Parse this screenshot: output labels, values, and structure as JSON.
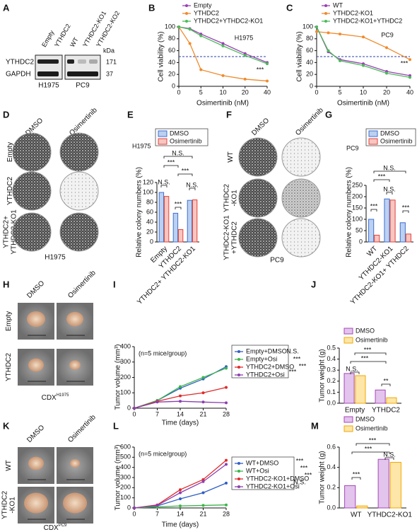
{
  "figure": {
    "panel_labels": [
      "A",
      "B",
      "C",
      "D",
      "E",
      "F",
      "G",
      "H",
      "I",
      "J",
      "K",
      "L",
      "M"
    ],
    "blot": {
      "lanes": [
        "Empty",
        "YTHDC2",
        "WT",
        "YTHDC2-KO1",
        "YTHDC2-KO2"
      ],
      "kda": "kDa",
      "proteins": [
        "YTHDC2",
        "GAPDH"
      ],
      "sizes": [
        "171",
        "37"
      ],
      "cells": [
        "H1975",
        "PC9"
      ]
    },
    "D": {
      "columns": [
        "DMSO",
        "Osimertinib"
      ],
      "rows": [
        [
          "Empty"
        ],
        [
          "YTHDC2"
        ],
        [
          "YTHDC2+",
          "YTHDC2-KO1"
        ]
      ],
      "cell": "H1975"
    },
    "F": {
      "columns": [
        "DMSO",
        "Osimertinib"
      ],
      "rows": [
        [
          "WT"
        ],
        [
          "YTHDC2",
          "-KO1"
        ],
        [
          "YTHDC2-KO1",
          "+YTHDC2"
        ]
      ],
      "cell": "PC9"
    },
    "H": {
      "columns": [
        "DMSO",
        "Osimertinib"
      ],
      "rows": [
        [
          "Empty"
        ],
        [
          "YTHDC2"
        ]
      ],
      "model": "CDX",
      "cell": "H1975"
    },
    "K": {
      "columns": [
        "DMSO",
        "Osimertinib"
      ],
      "rows": [
        [
          "WT"
        ],
        [
          "YTHDC2",
          "-KO1"
        ]
      ],
      "model": "CDX",
      "cell": "PC9"
    }
  },
  "chart_data": [
    {
      "type": "line",
      "categories": [
        "0",
        null,
        "5",
        "10",
        "20",
        "40"
      ],
      "x_label": "Osimertinib (nM)",
      "y_label": "Cell viability (%)",
      "ylim": [
        0,
        100
      ],
      "yticks": [
        0,
        20,
        40,
        60,
        80,
        100
      ],
      "hline": 50,
      "hline_color": "#2b3fa8",
      "series": [
        {
          "name": "Empty",
          "color": "#9b3fb5",
          "values": [
            100,
            97,
            88,
            72,
            55,
            40
          ]
        },
        {
          "name": "YTHDC2",
          "color": "#f08a2b",
          "values": [
            100,
            72,
            28,
            18,
            12,
            9
          ]
        },
        {
          "name": "YTHDC2+YTHDC2-KO1",
          "color": "#4cbb5a",
          "values": [
            100,
            96,
            85,
            68,
            52,
            38
          ]
        }
      ],
      "annotations": [
        "H1975",
        "***"
      ]
    },
    {
      "type": "line",
      "categories": [
        "0",
        null,
        "5",
        "10",
        "20",
        "40"
      ],
      "x_label": "Osimertinib (nM)",
      "y_label": "Cell viability (%)",
      "ylim": [
        0,
        100
      ],
      "yticks": [
        0,
        20,
        40,
        60,
        80,
        100
      ],
      "hline": 50,
      "hline_color": "#2b3fa8",
      "series": [
        {
          "name": "WT",
          "color": "#9b3fb5",
          "values": [
            100,
            58,
            45,
            38,
            25,
            18
          ]
        },
        {
          "name": "YTHDC2-KO1",
          "color": "#f08a2b",
          "values": [
            92,
            90,
            88,
            83,
            65,
            45
          ]
        },
        {
          "name": "YTHDC2-KO1+YTHDC2",
          "color": "#4cbb5a",
          "values": [
            100,
            60,
            43,
            35,
            22,
            15
          ]
        }
      ],
      "annotations": [
        "PC9",
        "***"
      ]
    },
    {
      "type": "bar",
      "categories": [
        "Empty",
        "YTHDC2",
        "YTHDC2+ YTHDC2-KO1"
      ],
      "y_label": "Relative colony numbers (%)",
      "ylim": [
        0,
        120
      ],
      "yticks": [
        0,
        20,
        40,
        60,
        80,
        100,
        120
      ],
      "series": [
        {
          "name": "DMSO",
          "color": "#3b6fd1",
          "fill": "#bcd0f0",
          "values": [
            100,
            58,
            84
          ]
        },
        {
          "name": "Osimertinib",
          "color": "#e2413b",
          "fill": "#f7c6c0",
          "values": [
            92,
            25,
            85
          ]
        }
      ],
      "annotations": [
        "H1975",
        "N.S.",
        "***",
        "***",
        "N.S.",
        "***",
        "N.S."
      ]
    },
    {
      "type": "bar",
      "categories": [
        "WT",
        "YTHDC2-KO1",
        "YTHDC2-KO1+ YTHDC2"
      ],
      "y_label": "Relative colony numbers (%)",
      "ylim": [
        0,
        250
      ],
      "yticks": [
        0,
        50,
        100,
        150,
        200,
        250
      ],
      "series": [
        {
          "name": "DMSO",
          "color": "#3b6fd1",
          "fill": "#bcd0f0",
          "values": [
            100,
            190,
            85
          ]
        },
        {
          "name": "Osimertinib",
          "color": "#e2413b",
          "fill": "#f7c6c0",
          "values": [
            30,
            185,
            35
          ]
        }
      ],
      "annotations": [
        "PC9",
        "N.S.",
        "***",
        "N.S.",
        "***",
        "***"
      ]
    },
    {
      "type": "line",
      "x": [
        0,
        7,
        14,
        21,
        28
      ],
      "xlim": [
        0,
        28
      ],
      "xticks": [
        0,
        7,
        14,
        21,
        28
      ],
      "x_label": "Time (days)",
      "y_label": "Tumor volume (mm³)",
      "ylim": [
        0,
        400
      ],
      "yticks": [
        0,
        100,
        200,
        300,
        400
      ],
      "series": [
        {
          "name": "Empty+DMSO",
          "color": "#2f5fc6",
          "values": [
            0,
            50,
            130,
            190,
            270
          ]
        },
        {
          "name": "Empty+Osi",
          "color": "#3cb54a",
          "values": [
            0,
            50,
            140,
            200,
            260
          ]
        },
        {
          "name": "YTHDC2+DMSO",
          "color": "#e02a2a",
          "values": [
            0,
            45,
            80,
            100,
            135
          ]
        },
        {
          "name": "YTHDC2+Osi",
          "color": "#8b3fb0",
          "values": [
            0,
            40,
            45,
            40,
            35
          ]
        }
      ],
      "annotations": [
        "(n=5 mice/group)",
        "N.S.",
        "***",
        "***",
        "***"
      ]
    },
    {
      "type": "bar",
      "categories": [
        "Empty",
        "YTHDC2"
      ],
      "y_label": "Tumor weight (g)",
      "ylim": [
        0,
        0.5
      ],
      "yticks": [
        {
          "value": 0,
          "label": "0.0"
        },
        0.1,
        0.2,
        0.3,
        0.4,
        0.5
      ],
      "series": [
        {
          "name": "DMSO",
          "color": "#a448b8",
          "fill": "#e3c4ec",
          "values": [
            0.27,
            0.12
          ]
        },
        {
          "name": "Osimertinib",
          "color": "#f2a800",
          "fill": "#fde6a8",
          "values": [
            0.25,
            0.05
          ]
        }
      ],
      "annotations": [
        "***",
        "***",
        "N.S.",
        "**"
      ]
    },
    {
      "type": "line",
      "x": [
        0,
        7,
        14,
        21,
        28
      ],
      "xlim": [
        0,
        28
      ],
      "xticks": [
        0,
        7,
        14,
        21,
        28
      ],
      "x_label": "Time (days)",
      "y_label": "Tumor volume (mm³)",
      "ylim": [
        0,
        600
      ],
      "yticks": [
        0,
        100,
        200,
        300,
        400,
        500,
        600
      ],
      "series": [
        {
          "name": "WT+DMSO",
          "color": "#2f5fc6",
          "values": [
            0,
            20,
            90,
            150,
            245
          ]
        },
        {
          "name": "WT+Osi",
          "color": "#3cb54a",
          "values": [
            0,
            10,
            20,
            25,
            30
          ]
        },
        {
          "name": "YTHDC2-KO1+DMSO",
          "color": "#e02a2a",
          "values": [
            0,
            30,
            180,
            280,
            470
          ]
        },
        {
          "name": "YTHDC2-KO1+Osi",
          "color": "#8b3fb0",
          "values": [
            0,
            25,
            150,
            260,
            430
          ]
        }
      ],
      "annotations": [
        "(n=5 mice/group)",
        "***",
        "***",
        "***",
        "N.S."
      ]
    },
    {
      "type": "bar",
      "categories": [
        "WT",
        "YTHDC2-KO1"
      ],
      "y_label": "Tumor weight (g)",
      "ylim": [
        0,
        0.6
      ],
      "yticks": [
        {
          "value": 0,
          "label": "0.0"
        },
        0.2,
        0.4,
        0.6
      ],
      "series": [
        {
          "name": "DMSO",
          "color": "#a448b8",
          "fill": "#e3c4ec",
          "values": [
            0.22,
            0.48
          ]
        },
        {
          "name": "Osimertinib",
          "color": "#f2a800",
          "fill": "#fde6a8",
          "values": [
            0.02,
            0.45
          ]
        }
      ],
      "annotations": [
        "***",
        "***",
        "N.S.",
        "***"
      ]
    }
  ]
}
